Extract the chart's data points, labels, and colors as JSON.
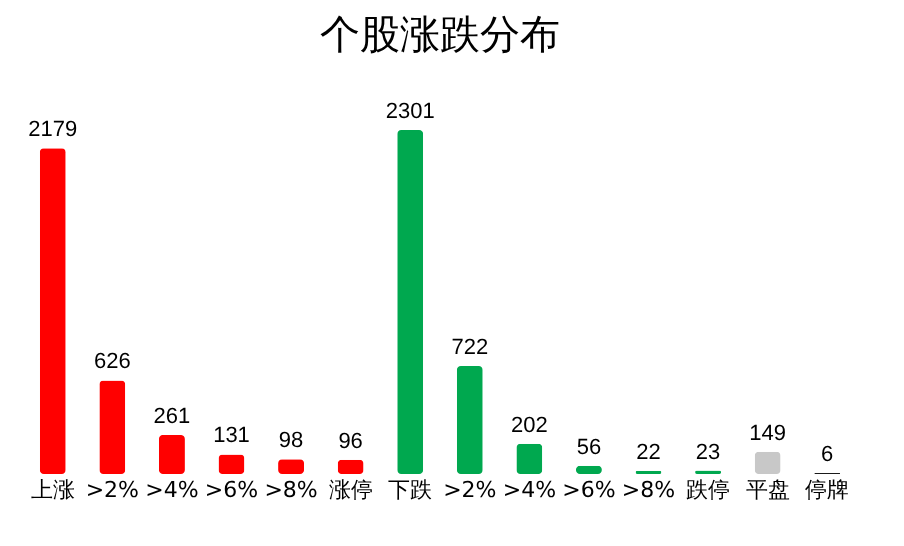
{
  "chart_data": {
    "type": "bar",
    "title": "个股涨跌分布",
    "categories": [
      "上涨",
      ">2%",
      ">4%",
      ">6%",
      ">8%",
      "涨停",
      "下跌",
      ">2%",
      ">4%",
      ">6%",
      ">8%",
      "跌停",
      "平盘",
      "停牌"
    ],
    "values": [
      2179,
      626,
      261,
      131,
      98,
      96,
      2301,
      722,
      202,
      56,
      22,
      23,
      149,
      6
    ],
    "colors": [
      "#ff0000",
      "#ff0000",
      "#ff0000",
      "#ff0000",
      "#ff0000",
      "#ff0000",
      "#00a84f",
      "#00a84f",
      "#00a84f",
      "#00a84f",
      "#00a84f",
      "#00a84f",
      "#c8c8c8",
      "#1a1a1a"
    ],
    "data_labels": true,
    "grid": false,
    "legend": false
  }
}
